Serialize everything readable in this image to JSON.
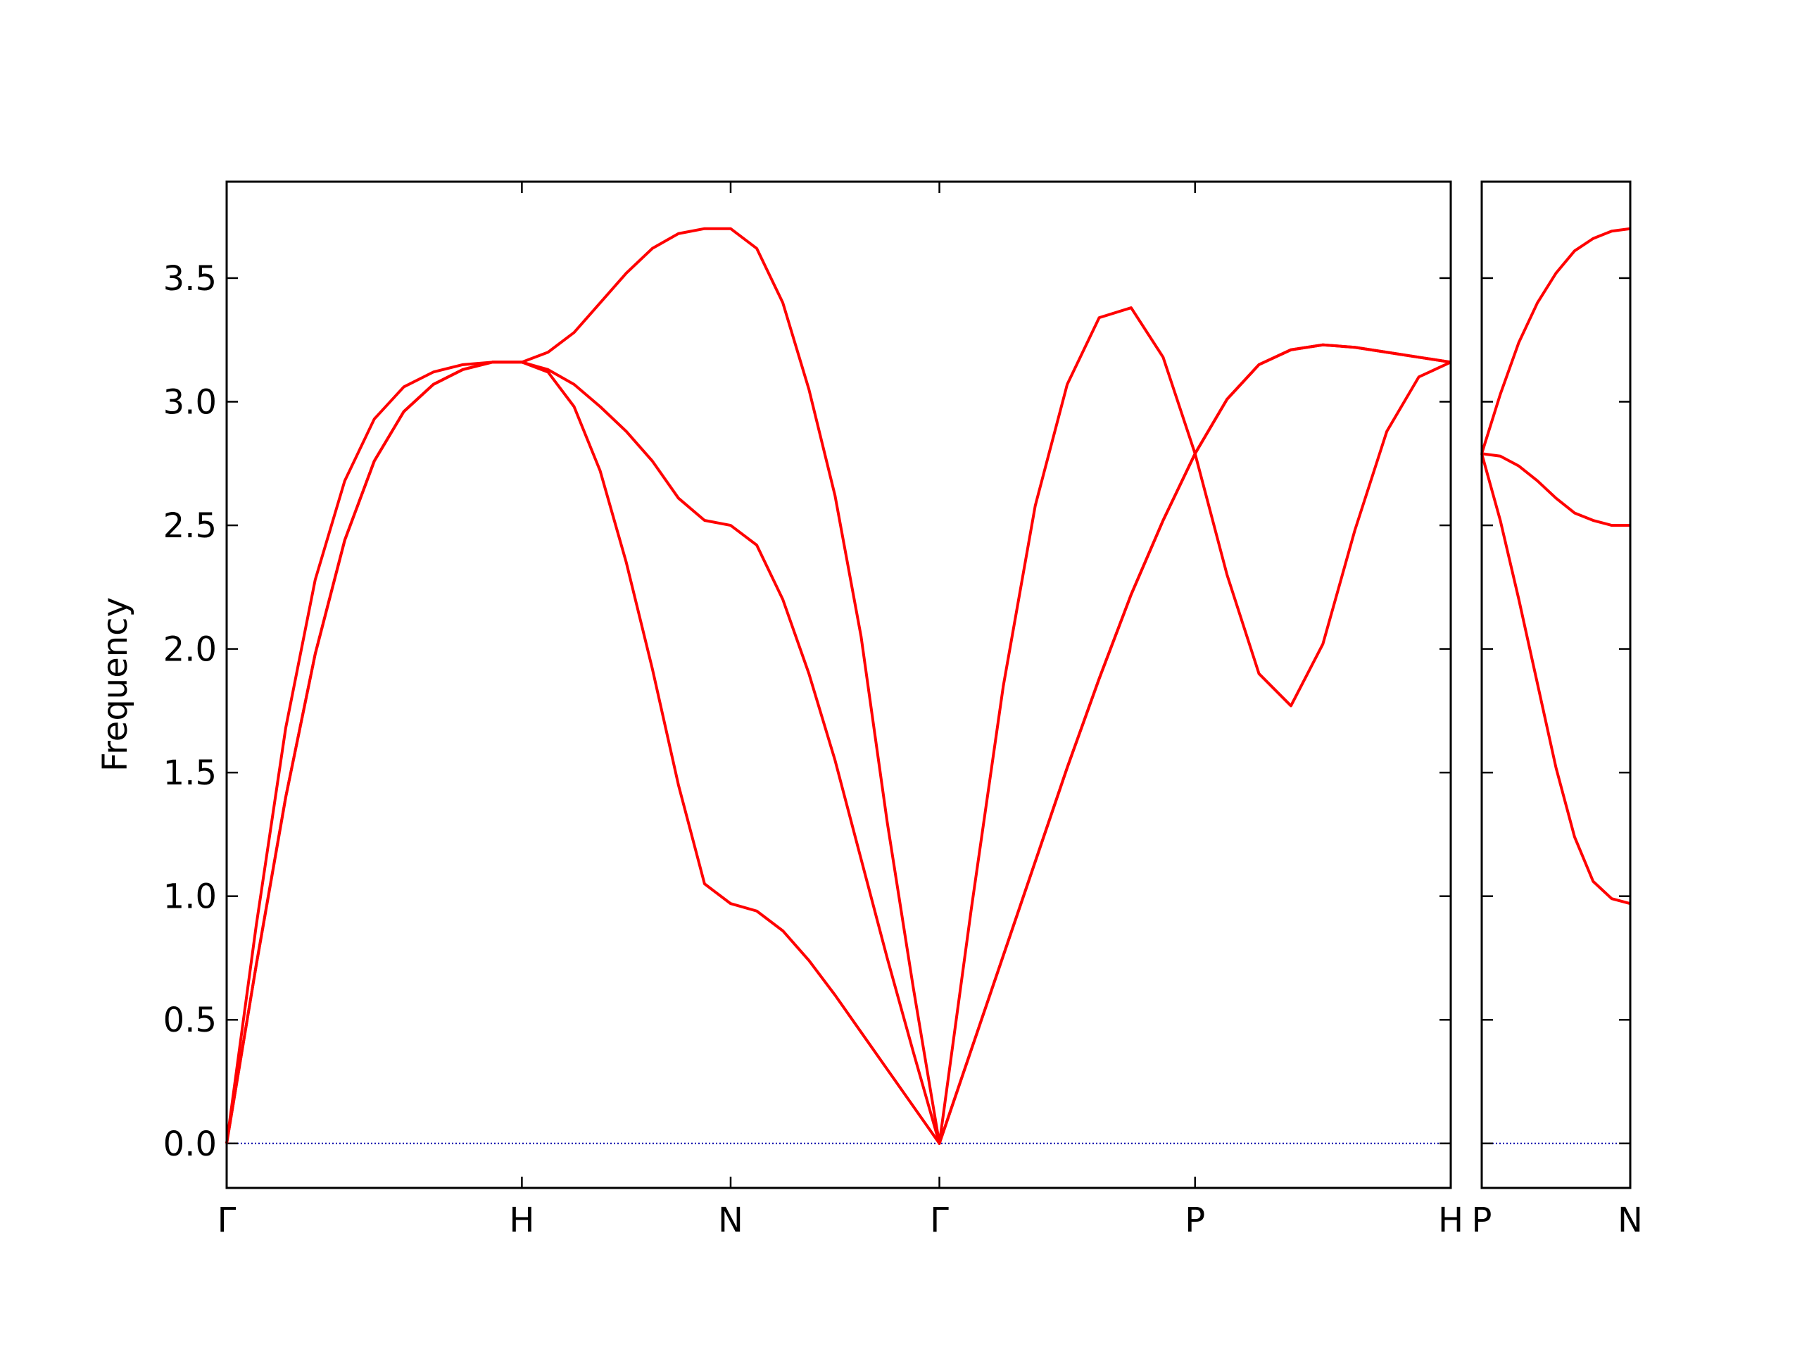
{
  "chart_data": [
    {
      "type": "line",
      "ylabel": "Frequency",
      "x": [
        0,
        0.1,
        0.2,
        0.3,
        0.4,
        0.5,
        0.6,
        0.7,
        0.8,
        0.9,
        1.0,
        1.0884,
        1.1768,
        1.2652,
        1.3536,
        1.4419,
        1.5303,
        1.6187,
        1.7071,
        1.7955,
        1.8839,
        1.9723,
        2.0607,
        2.149,
        2.2374,
        2.3258,
        2.4142,
        2.5225,
        2.6307,
        2.739,
        2.8472,
        2.9555,
        3.0637,
        3.172,
        3.2802,
        3.3885,
        3.4967,
        3.605,
        3.7132,
        3.8215,
        3.9297,
        4.038,
        4.1463
      ],
      "series": [
        {
          "color": "#ff0000",
          "values": [
            0,
            0.72,
            1.4,
            1.98,
            2.44,
            2.76,
            2.96,
            3.07,
            3.13,
            3.16,
            3.16,
            3.12,
            2.98,
            2.72,
            2.35,
            1.92,
            1.45,
            1.05,
            0.97,
            0.94,
            0.86,
            0.74,
            0.6,
            0.45,
            0.3,
            0.15,
            0,
            0.38,
            0.76,
            1.14,
            1.52,
            1.88,
            2.22,
            2.52,
            2.79,
            3.01,
            3.15,
            3.21,
            3.23,
            3.22,
            3.2,
            3.18,
            3.16
          ]
        },
        {
          "color": "#ff0000",
          "values": [
            0,
            0.72,
            1.4,
            1.98,
            2.44,
            2.76,
            2.96,
            3.07,
            3.13,
            3.16,
            3.16,
            3.13,
            3.07,
            2.98,
            2.88,
            2.76,
            2.61,
            2.52,
            2.5,
            2.42,
            2.2,
            1.9,
            1.55,
            1.15,
            0.75,
            0.37,
            0,
            0.38,
            0.76,
            1.14,
            1.52,
            1.88,
            2.22,
            2.52,
            2.79,
            3.01,
            3.15,
            3.21,
            3.23,
            3.22,
            3.2,
            3.18,
            3.16
          ]
        },
        {
          "color": "#ff0000",
          "values": [
            0,
            0.88,
            1.68,
            2.28,
            2.68,
            2.93,
            3.06,
            3.12,
            3.15,
            3.16,
            3.16,
            3.2,
            3.28,
            3.4,
            3.52,
            3.62,
            3.68,
            3.7,
            3.7,
            3.62,
            3.4,
            3.05,
            2.62,
            2.05,
            1.3,
            0.63,
            0,
            0.95,
            1.85,
            2.58,
            3.07,
            3.34,
            3.38,
            3.18,
            2.79,
            2.3,
            1.9,
            1.77,
            2.02,
            2.48,
            2.88,
            3.1,
            3.16
          ]
        }
      ],
      "xlim": [
        0,
        4.1463
      ],
      "xticks": [
        {
          "value": 0,
          "label": "Γ"
        },
        {
          "value": 1.0,
          "label": "H"
        },
        {
          "value": 1.7071,
          "label": "N"
        },
        {
          "value": 2.4142,
          "label": "Γ"
        },
        {
          "value": 3.2802,
          "label": "P"
        },
        {
          "value": 4.1463,
          "label": "H"
        }
      ],
      "ylim": [
        -0.18,
        3.89
      ],
      "yticks": [
        {
          "value": 0,
          "label": "0.0"
        },
        0.5,
        {
          "value": 1,
          "label": "1.0"
        },
        1.5,
        {
          "value": 2,
          "label": "2.0"
        },
        2.5,
        {
          "value": 3,
          "label": "3.0"
        },
        3.5
      ],
      "show_ytick_labels": true,
      "hline": 0,
      "hline_color": "#0000aa"
    },
    {
      "type": "line",
      "x": [
        0,
        0.0625,
        0.125,
        0.1875,
        0.25,
        0.3125,
        0.375,
        0.4375,
        0.5
      ],
      "series": [
        {
          "color": "#ff0000",
          "values": [
            2.79,
            2.52,
            2.2,
            1.86,
            1.52,
            1.24,
            1.06,
            0.99,
            0.97
          ]
        },
        {
          "color": "#ff0000",
          "values": [
            2.79,
            2.78,
            2.74,
            2.68,
            2.61,
            2.55,
            2.52,
            2.5,
            2.5
          ]
        },
        {
          "color": "#ff0000",
          "values": [
            2.79,
            3.03,
            3.24,
            3.4,
            3.52,
            3.61,
            3.66,
            3.69,
            3.7
          ]
        }
      ],
      "xlim": [
        0,
        0.5
      ],
      "xticks": [
        {
          "value": 0,
          "label": "P"
        },
        {
          "value": 0.5,
          "label": "N"
        }
      ],
      "ylim": [
        -0.18,
        3.89
      ],
      "yticks": [
        {
          "value": 0,
          "label": "0.0"
        },
        0.5,
        {
          "value": 1,
          "label": "1.0"
        },
        1.5,
        {
          "value": 2,
          "label": "2.0"
        },
        2.5,
        {
          "value": 3,
          "label": "3.0"
        },
        3.5
      ],
      "show_ytick_labels": false,
      "hline": 0,
      "hline_color": "#0000aa"
    }
  ]
}
